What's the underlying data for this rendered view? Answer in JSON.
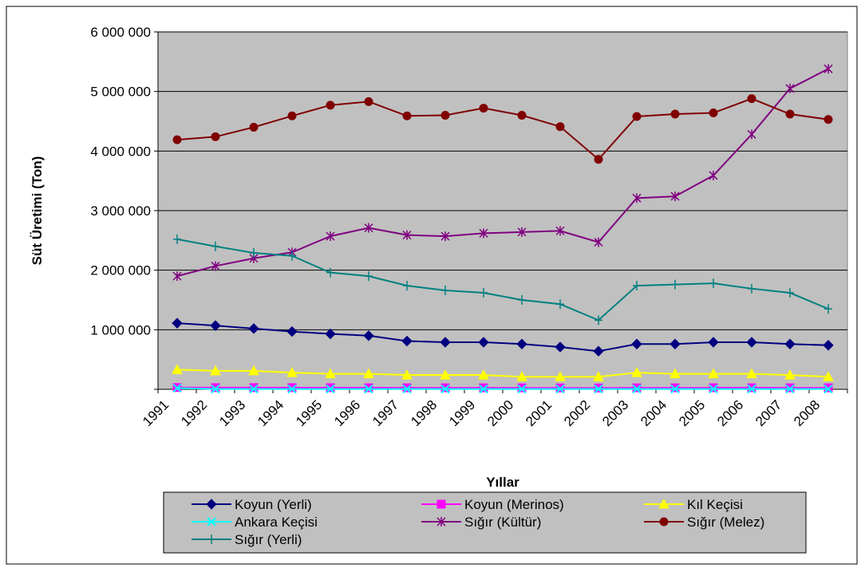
{
  "chart_data": {
    "type": "line",
    "title": "",
    "xlabel": "Yıllar",
    "ylabel": "Süt Üretimi (Ton)",
    "ylim": [
      0,
      6000000
    ],
    "yticks": [
      0,
      1000000,
      2000000,
      3000000,
      4000000,
      5000000,
      6000000
    ],
    "ytick_labels": [
      "",
      "1 000 000",
      "2 000 000",
      "3 000 000",
      "4 000 000",
      "5 000 000",
      "6 000 000"
    ],
    "categories": [
      "1991",
      "1992",
      "1993",
      "1994",
      "1995",
      "1996",
      "1997",
      "1998",
      "1999",
      "2000",
      "2001",
      "2002",
      "2003",
      "2004",
      "2005",
      "2006",
      "2007",
      "2008"
    ],
    "grid": true,
    "plot_background": "#c0c0c0",
    "legend_position": "bottom",
    "series": [
      {
        "name": "Koyun (Yerli)",
        "color": "#000080",
        "marker": "diamond",
        "values": [
          1110000,
          1070000,
          1020000,
          970000,
          930000,
          900000,
          810000,
          790000,
          790000,
          760000,
          710000,
          640000,
          760000,
          760000,
          790000,
          790000,
          760000,
          740000
        ]
      },
      {
        "name": "Koyun (Merinos)",
        "color": "#ff00ff",
        "marker": "square",
        "values": [
          30000,
          28000,
          28000,
          27000,
          27000,
          26000,
          25000,
          25000,
          25000,
          24000,
          23000,
          22000,
          25000,
          25000,
          26000,
          26000,
          25000,
          25000
        ]
      },
      {
        "name": "Kıl Keçisi",
        "color": "#ffff00",
        "marker": "triangle",
        "values": [
          330000,
          310000,
          310000,
          280000,
          260000,
          260000,
          240000,
          240000,
          240000,
          210000,
          210000,
          210000,
          280000,
          260000,
          260000,
          260000,
          240000,
          210000
        ]
      },
      {
        "name": "Ankara Keçisi",
        "color": "#00ffff",
        "marker": "x",
        "values": [
          20000,
          5000,
          5000,
          5000,
          5000,
          5000,
          5000,
          5000,
          5000,
          5000,
          5000,
          5000,
          5000,
          5000,
          5000,
          5000,
          5000,
          5000
        ]
      },
      {
        "name": "Sığır (Kültür)",
        "color": "#800080",
        "marker": "star",
        "values": [
          1900000,
          2070000,
          2200000,
          2300000,
          2570000,
          2710000,
          2590000,
          2570000,
          2620000,
          2640000,
          2660000,
          2470000,
          3210000,
          3240000,
          3590000,
          4280000,
          5050000,
          5380000
        ]
      },
      {
        "name": "Sığır (Melez)",
        "color": "#800000",
        "marker": "circle",
        "values": [
          4190000,
          4240000,
          4400000,
          4590000,
          4770000,
          4830000,
          4590000,
          4600000,
          4720000,
          4600000,
          4410000,
          3860000,
          4580000,
          4620000,
          4640000,
          4880000,
          4620000,
          4530000
        ]
      },
      {
        "name": "Sığır (Yerli)",
        "color": "#008080",
        "marker": "plus",
        "values": [
          2520000,
          2400000,
          2290000,
          2240000,
          1960000,
          1900000,
          1740000,
          1660000,
          1620000,
          1500000,
          1430000,
          1160000,
          1740000,
          1760000,
          1780000,
          1690000,
          1620000,
          1350000
        ]
      }
    ]
  }
}
